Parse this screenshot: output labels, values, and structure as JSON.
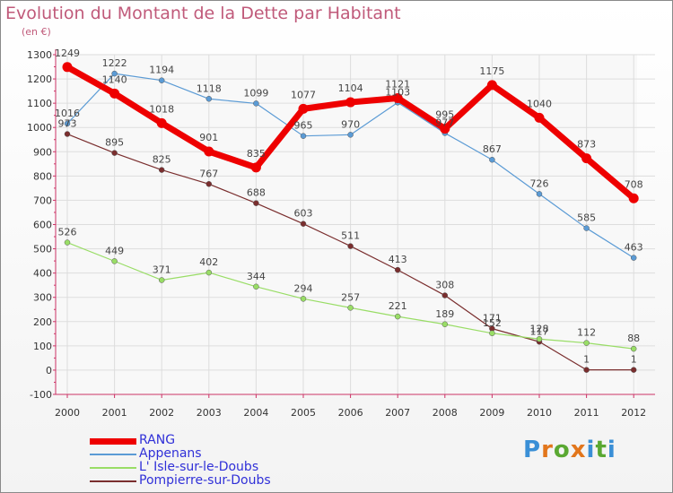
{
  "header": {
    "title": "Evolution du Montant de la Dette par Habitant",
    "unit": "(en €)"
  },
  "brand": {
    "text": "Proxiti",
    "colors": [
      "#3a8fd6",
      "#e2761c",
      "#5aa832",
      "#e2761c",
      "#3a8fd6",
      "#5aa832",
      "#3a8fd6"
    ]
  },
  "chart_data": {
    "type": "line",
    "title": "Evolution du Montant de la Dette par Habitant",
    "subtitle": "(en €)",
    "xlabel": "",
    "ylabel": "",
    "x": [
      "2000",
      "2001",
      "2002",
      "2003",
      "2004",
      "2005",
      "2006",
      "2007",
      "2008",
      "2009",
      "2010",
      "2011",
      "2012"
    ],
    "ylim": [
      -100,
      1300
    ],
    "yticks": [
      -100,
      0,
      100,
      200,
      300,
      400,
      500,
      600,
      700,
      800,
      900,
      1000,
      1100,
      1200,
      1300
    ],
    "grid": true,
    "legend_position": "bottom-left",
    "series": [
      {
        "name": "RANG",
        "color": "#ee0000",
        "values": [
          1249,
          1140,
          1018,
          901,
          835,
          1077,
          1104,
          1121,
          995,
          1175,
          1040,
          873,
          708
        ]
      },
      {
        "name": "Appenans",
        "color": "#5b9bd5",
        "values": [
          1016,
          1222,
          1194,
          1118,
          1099,
          965,
          970,
          1103,
          977,
          867,
          726,
          585,
          463
        ]
      },
      {
        "name": "L' Isle-sur-le-Doubs",
        "color": "#99dd66",
        "values": [
          526,
          449,
          371,
          402,
          344,
          294,
          257,
          221,
          189,
          152,
          128,
          112,
          88
        ]
      },
      {
        "name": "Pompierre-sur-Doubs",
        "color": "#7a2e2e",
        "values": [
          973,
          895,
          825,
          767,
          688,
          603,
          511,
          413,
          308,
          171,
          117,
          1,
          1
        ]
      }
    ]
  }
}
